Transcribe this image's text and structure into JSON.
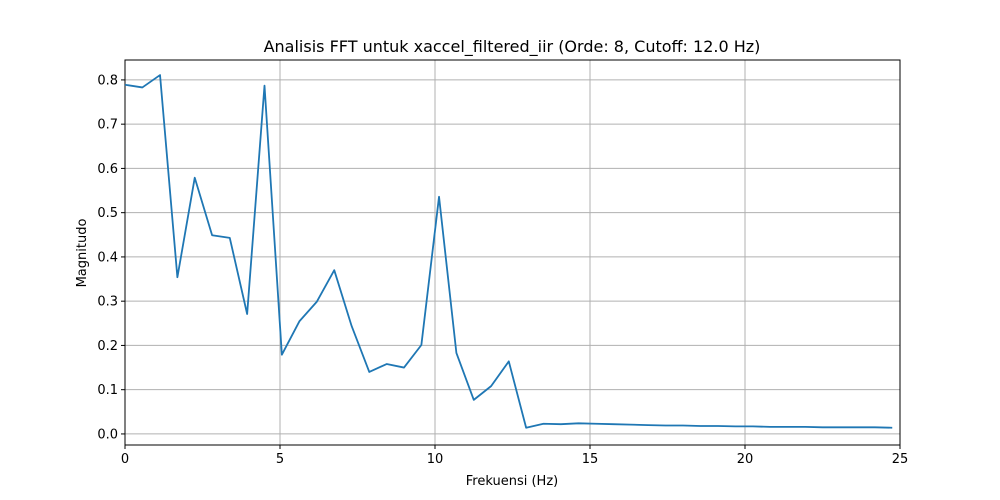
{
  "chart_data": {
    "type": "line",
    "title": "Analisis FFT untuk xaccel_filtered_iir (Orde: 8, Cutoff: 12.0 Hz)",
    "xlabel": "Frekuensi (Hz)",
    "ylabel": "Magnitudo",
    "xlim": [
      0,
      25
    ],
    "ylim": [
      -0.025,
      0.845
    ],
    "xticks": [
      0,
      5,
      10,
      15,
      20,
      25
    ],
    "xtick_labels": [
      "0",
      "5",
      "10",
      "15",
      "20",
      "25"
    ],
    "yticks": [
      0.0,
      0.1,
      0.2,
      0.3,
      0.4,
      0.5,
      0.6,
      0.7,
      0.8
    ],
    "ytick_labels": [
      "0.0",
      "0.1",
      "0.2",
      "0.3",
      "0.4",
      "0.5",
      "0.6",
      "0.7",
      "0.8"
    ],
    "grid": true,
    "color": "#1f77b4",
    "series": [
      {
        "x": [
          0.0,
          0.56,
          1.13,
          1.69,
          2.25,
          2.81,
          3.38,
          3.94,
          4.5,
          5.06,
          5.63,
          6.19,
          6.75,
          7.31,
          7.88,
          8.44,
          9.0,
          9.56,
          10.13,
          10.69,
          11.25,
          11.81,
          12.38,
          12.94,
          13.5,
          14.06,
          14.63,
          15.19,
          15.75,
          16.31,
          16.88,
          17.44,
          18.0,
          18.56,
          19.13,
          19.69,
          20.25,
          20.81,
          21.38,
          21.94,
          22.5,
          23.06,
          23.63,
          24.19,
          24.75
        ],
        "y": [
          0.789,
          0.783,
          0.811,
          0.354,
          0.579,
          0.449,
          0.443,
          0.271,
          0.787,
          0.179,
          0.255,
          0.299,
          0.37,
          0.244,
          0.14,
          0.158,
          0.15,
          0.201,
          0.536,
          0.183,
          0.077,
          0.108,
          0.164,
          0.014,
          0.023,
          0.022,
          0.024,
          0.023,
          0.022,
          0.021,
          0.02,
          0.019,
          0.019,
          0.018,
          0.018,
          0.017,
          0.017,
          0.016,
          0.016,
          0.016,
          0.015,
          0.015,
          0.015,
          0.015,
          0.014
        ]
      }
    ]
  }
}
